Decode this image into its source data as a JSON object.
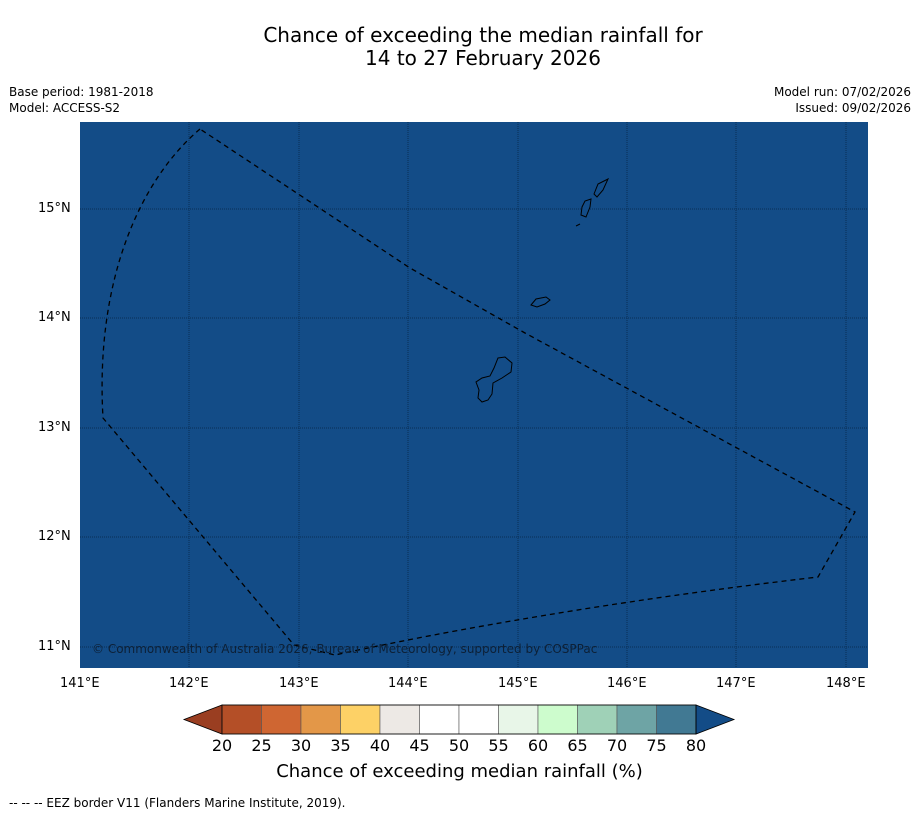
{
  "title": {
    "line1": "Chance of exceeding the median rainfall for",
    "line2": "14 to 27 February 2026"
  },
  "meta": {
    "base_period": "Base period: 1981-2018",
    "model": "Model: ACCESS-S2",
    "model_run": "Model run: 07/02/2026",
    "issued": "Issued: 09/02/2026"
  },
  "map": {
    "fill_color": "#134c87",
    "lon_ticks": [
      "141°E",
      "142°E",
      "143°E",
      "144°E",
      "145°E",
      "146°E",
      "147°E",
      "148°E"
    ],
    "lat_ticks": [
      "15°N",
      "14°N",
      "13°N",
      "12°N",
      "11°N"
    ],
    "copyright": "© Commonwealth of Australia 2026, Bureau of Meteorology, supported by COSPPac"
  },
  "colorbar": {
    "label": "Chance of exceeding median rainfall (%)",
    "tick_labels": [
      "20",
      "25",
      "30",
      "35",
      "40",
      "45",
      "50",
      "55",
      "60",
      "65",
      "70",
      "75",
      "80"
    ],
    "colors": [
      "#b44f27",
      "#cf6632",
      "#e39748",
      "#fdd166",
      "#ede9e5",
      "#ffffff",
      "#ffffff",
      "#e8f6e8",
      "#cdfccd",
      "#9fd1b7",
      "#6ea4a5",
      "#417993"
    ],
    "under_color": "#9a3e21",
    "over_color": "#134c87"
  },
  "footnote": "--  --  -- EEZ border V11 (Flanders Marine Institute, 2019)."
}
